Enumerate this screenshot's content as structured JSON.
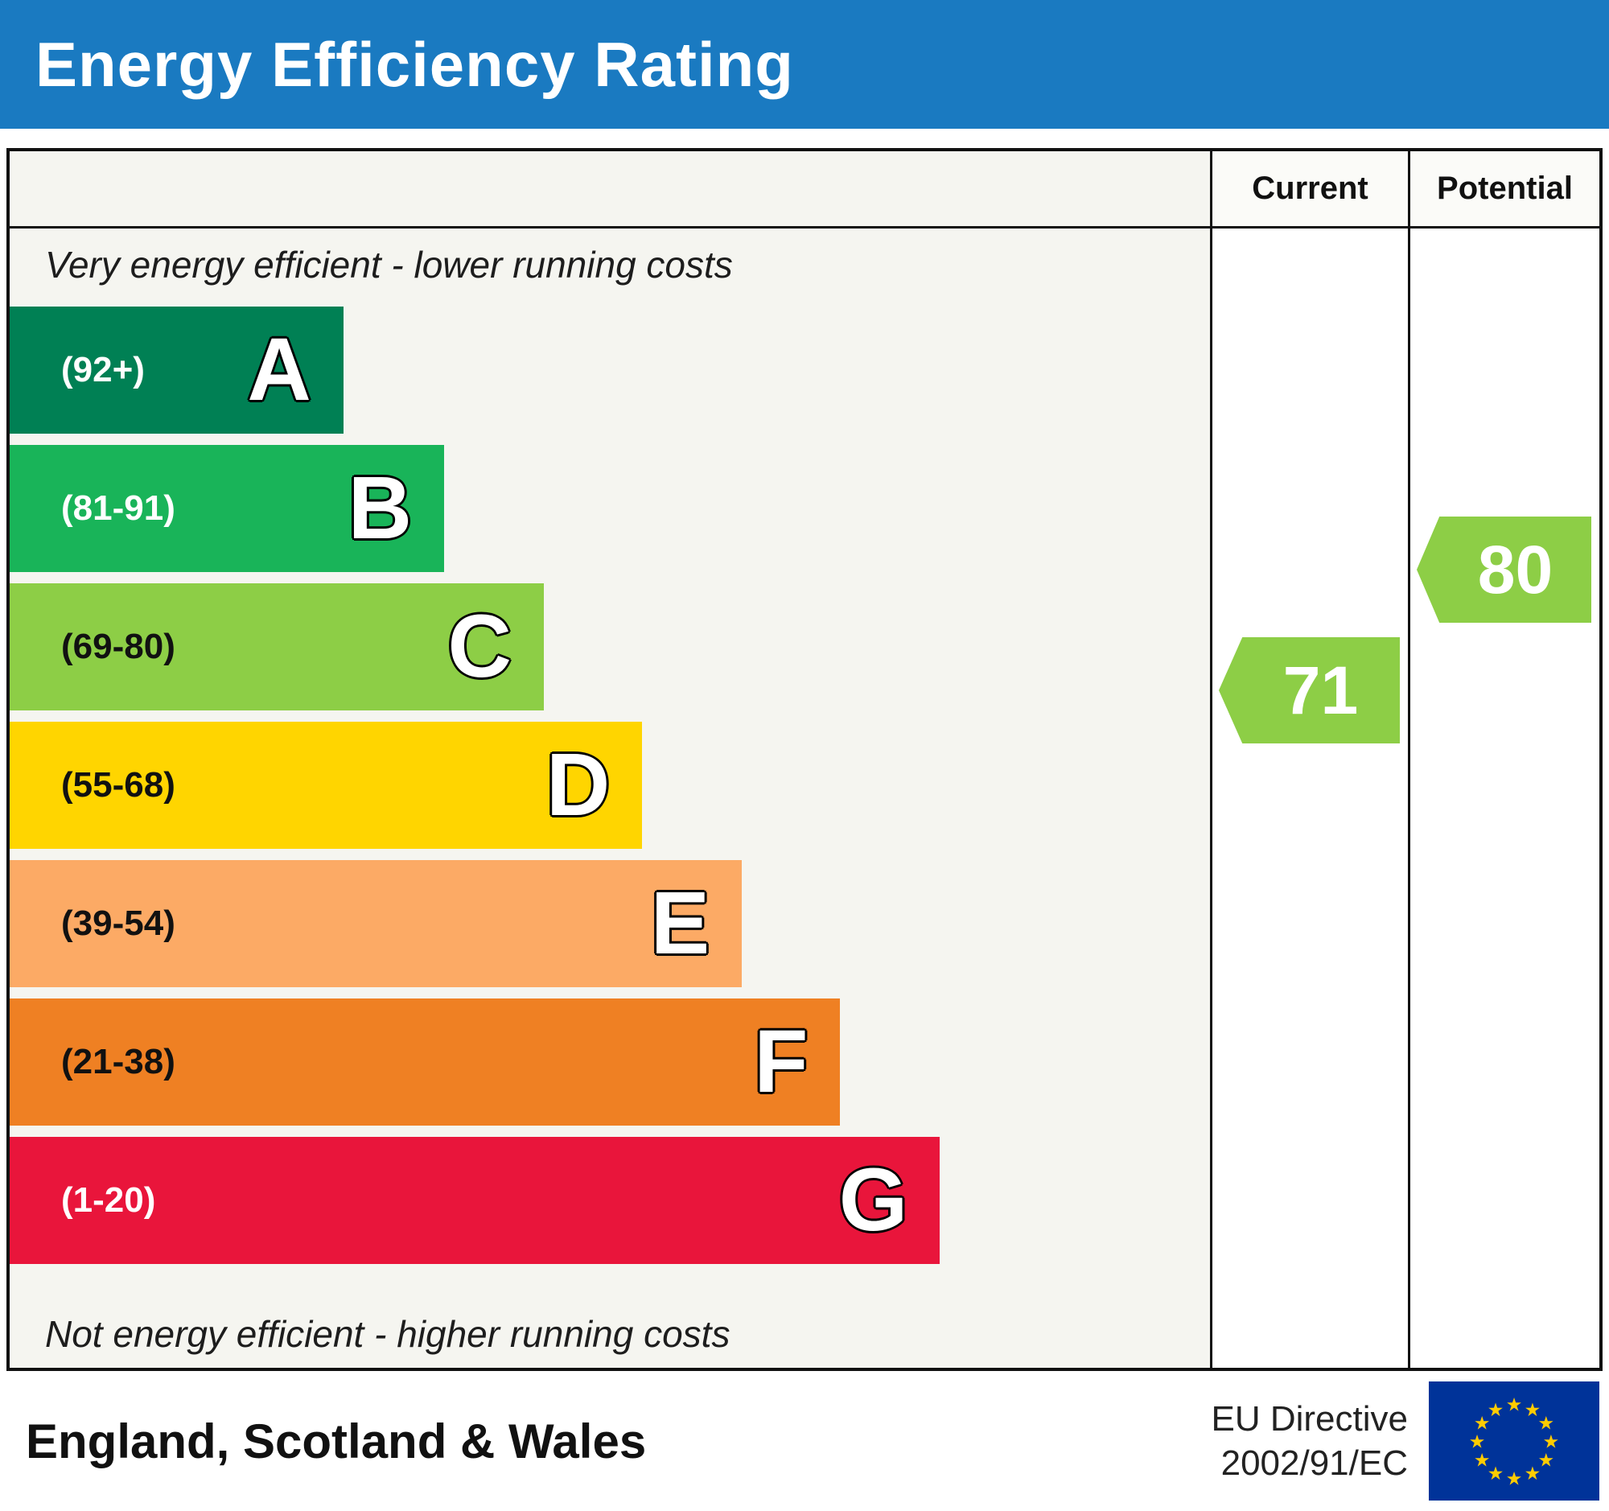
{
  "header": {
    "title": "Energy Efficiency Rating",
    "bg_color": "#1a7ac1",
    "text_color": "#ffffff"
  },
  "table": {
    "current_label": "Current",
    "potential_label": "Potential"
  },
  "captions": {
    "top": "Very energy efficient - lower running costs",
    "bottom": "Not energy efficient - higher running costs"
  },
  "chart_data": {
    "type": "bar",
    "title": "Energy Efficiency Rating",
    "categories": [
      "A",
      "B",
      "C",
      "D",
      "E",
      "F",
      "G"
    ],
    "value_range": [
      1,
      100
    ],
    "bands": [
      {
        "letter": "A",
        "range_label": "(92+)",
        "min": 92,
        "max": 100,
        "color": "#008054",
        "label_color": "#ffffff",
        "width_pct": 27.8
      },
      {
        "letter": "B",
        "range_label": "(81-91)",
        "min": 81,
        "max": 91,
        "color": "#19b459",
        "label_color": "#ffffff",
        "width_pct": 36.2
      },
      {
        "letter": "C",
        "range_label": "(69-80)",
        "min": 69,
        "max": 80,
        "color": "#8dce46",
        "label_color": "#111111",
        "width_pct": 44.5
      },
      {
        "letter": "D",
        "range_label": "(55-68)",
        "min": 55,
        "max": 68,
        "color": "#ffd500",
        "label_color": "#111111",
        "width_pct": 52.7
      },
      {
        "letter": "E",
        "range_label": "(39-54)",
        "min": 39,
        "max": 54,
        "color": "#fcaa65",
        "label_color": "#111111",
        "width_pct": 61.0
      },
      {
        "letter": "F",
        "range_label": "(21-38)",
        "min": 21,
        "max": 38,
        "color": "#ef8023",
        "label_color": "#111111",
        "width_pct": 69.2
      },
      {
        "letter": "G",
        "range_label": "(1-20)",
        "min": 1,
        "max": 20,
        "color": "#e9153b",
        "label_color": "#ffffff",
        "width_pct": 77.5
      }
    ],
    "current": {
      "value": 71,
      "band": "C",
      "color": "#8dce46"
    },
    "potential": {
      "value": 80,
      "band": "C",
      "color": "#8dce46"
    }
  },
  "footer": {
    "region": "England, Scotland & Wales",
    "directive_line1": "EU Directive",
    "directive_line2": "2002/91/EC",
    "eu_flag": {
      "bg_color": "#003399",
      "star_color": "#ffcc00"
    }
  }
}
